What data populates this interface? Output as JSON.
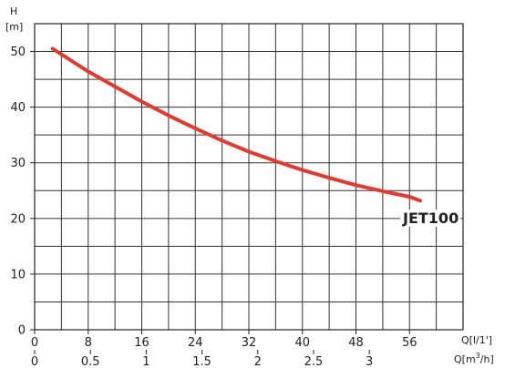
{
  "chart_data": {
    "type": "line",
    "ylabel_top": "H",
    "ylabel_unit": "[m]",
    "xlabel_top": "Q[l/1']",
    "xlabel_bottom_prefix": "Q[m",
    "xlabel_bottom_sup": "3",
    "xlabel_bottom_suffix": "/h]",
    "xlim": [
      0,
      64
    ],
    "ylim": [
      0,
      55
    ],
    "x_ticks_top": [
      "0",
      "8",
      "16",
      "24",
      "32",
      "40",
      "48",
      "56"
    ],
    "x_tick_values_top": [
      0,
      8,
      16,
      24,
      32,
      40,
      48,
      56
    ],
    "x_ticks_bottom": [
      "0",
      "0.5",
      "1",
      "1.5",
      "2",
      "2.5",
      "3"
    ],
    "x_tick_values_bottom": [
      0,
      8.333,
      16.667,
      25,
      33.333,
      41.667,
      50
    ],
    "y_ticks": [
      "0",
      "10",
      "20",
      "30",
      "40",
      "50"
    ],
    "y_tick_values": [
      0,
      10,
      20,
      30,
      40,
      50
    ],
    "grid": true,
    "series": [
      {
        "name": "JET100",
        "color": "#e8382c",
        "x": [
          2.7,
          8,
          12,
          16,
          20,
          24,
          28,
          32,
          36,
          40,
          44,
          48,
          52,
          56,
          57.6
        ],
        "y": [
          50.5,
          46.4,
          43.7,
          41.0,
          38.5,
          36.2,
          34.0,
          32.0,
          30.3,
          28.7,
          27.3,
          26.0,
          24.9,
          23.9,
          23.2
        ]
      }
    ]
  }
}
